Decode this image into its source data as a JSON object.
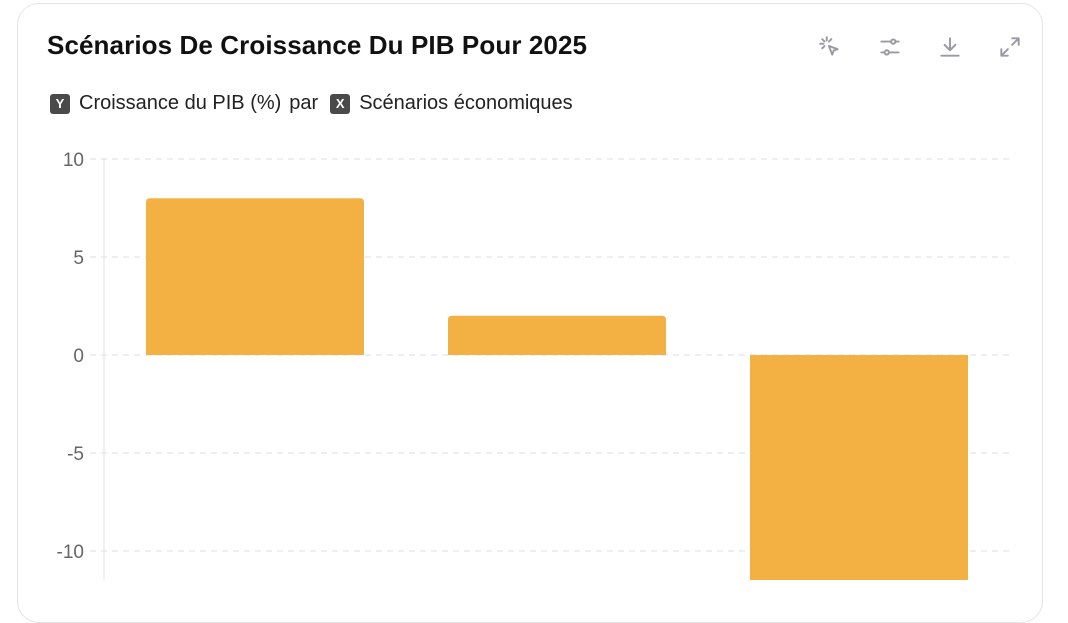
{
  "card": {
    "title": "Scénarios De Croissance Du PIB Pour 2025",
    "subtitle": {
      "y_badge": "Y",
      "y_label": "Croissance du PIB (%)",
      "connector": "par",
      "x_badge": "X",
      "x_label": "Scénarios économiques"
    },
    "toolbar": [
      {
        "icon": "click-pointer-icon"
      },
      {
        "icon": "sliders-icon"
      },
      {
        "icon": "download-icon"
      },
      {
        "icon": "expand-icon"
      }
    ]
  },
  "chart_data": {
    "type": "bar",
    "title": "Scénarios De Croissance Du PIB Pour 2025",
    "xlabel": "Scénarios économiques",
    "ylabel": "Croissance du PIB (%)",
    "categories": [
      "",
      "",
      ""
    ],
    "values": [
      8,
      2,
      -12
    ],
    "y_ticks": [
      "10",
      "5",
      "0",
      "-5",
      "-10"
    ],
    "ylim": [
      -11.5,
      10
    ],
    "grid": true,
    "bar_color": "#f3b043"
  }
}
